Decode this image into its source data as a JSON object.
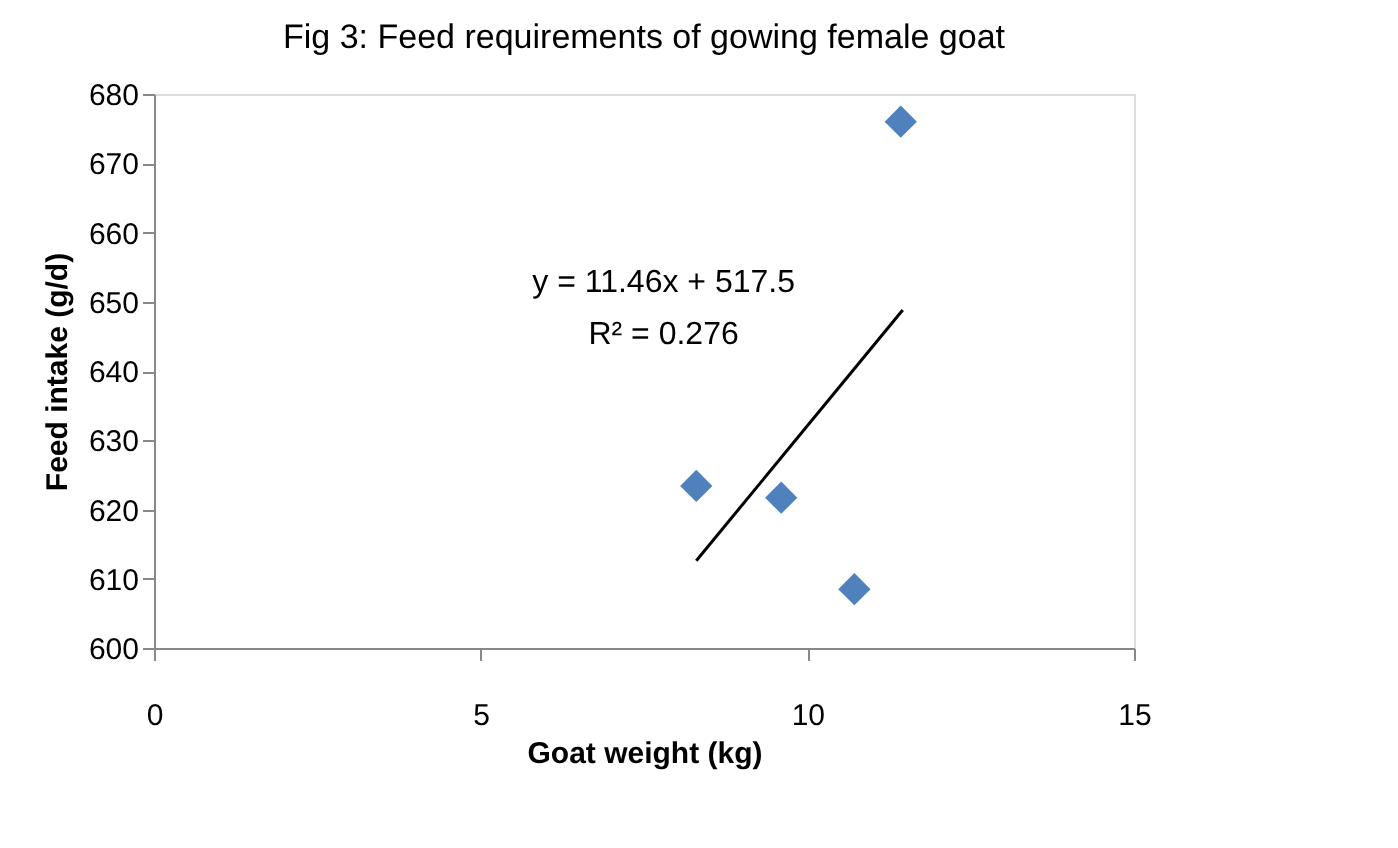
{
  "chart_data": {
    "type": "scatter",
    "title": "Fig 3: Feed requirements of gowing female goat",
    "xlabel": "Goat weight (kg)",
    "ylabel": "Feed intake (g/d)",
    "series": [
      {
        "type": "scatter",
        "color": "#4f81bd",
        "x": [
          8.3,
          9.6,
          10.72,
          11.43
        ],
        "values": [
          623.4,
          621.7,
          608.5,
          676.0
        ],
        "marker": "diamond"
      },
      {
        "type": "line",
        "color": "#000000",
        "x": [
          8.3,
          11.46
        ],
        "values": [
          612.6,
          648.8
        ],
        "marker": "none",
        "line_style": "solid"
      }
    ],
    "annotations": [
      "y = 11.46x + 517.5",
      "R² = 0.276"
    ],
    "xlim": [
      0,
      15
    ],
    "xticks": [
      0,
      5,
      10,
      15
    ],
    "ylim": [
      600,
      680
    ],
    "yticks": [
      600,
      610,
      620,
      630,
      640,
      650,
      660,
      670,
      680
    ],
    "grid": false
  }
}
